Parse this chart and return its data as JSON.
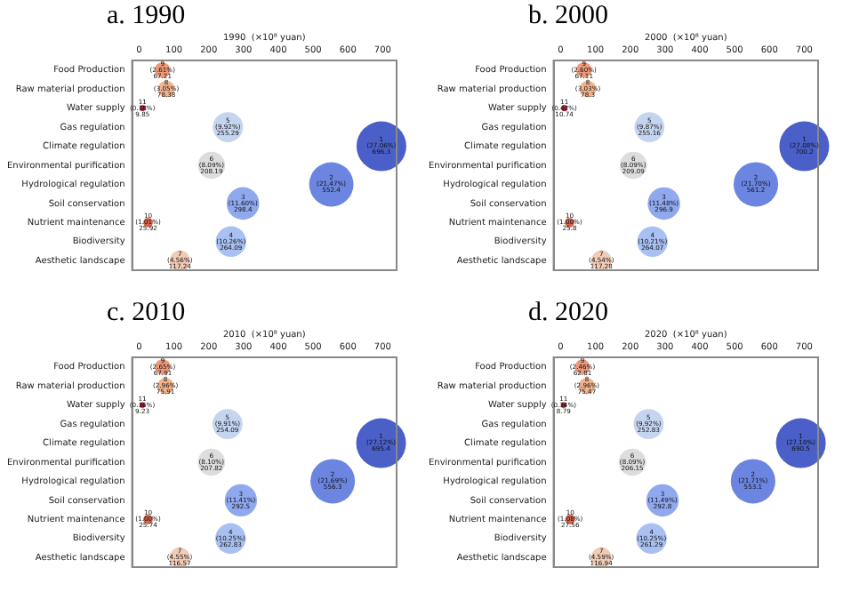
{
  "chart_data": [
    {
      "type": "bubble",
      "title": "a. 1990",
      "xlabel": "1990  (×10⁸ yuan)",
      "orientation": "horizontal",
      "categories": [
        "Food Production",
        "Raw material production",
        "Water supply",
        "Gas regulation",
        "Climate regulation",
        "Environmental purification",
        "Hydrological regulation",
        "Soil conservation",
        "Nutrient maintenance",
        "Biodiversity",
        "Aesthetic landscape"
      ],
      "values": [
        67.21,
        78.38,
        9.85,
        255.29,
        696.3,
        208.19,
        552.4,
        298.4,
        25.92,
        264.09,
        117.24
      ],
      "sizes": [
        0.097,
        0.113,
        0.014,
        0.367,
        1,
        0.299,
        0.793,
        0.429,
        0.037,
        0.379,
        0.168
      ],
      "value_labels": [
        "9\n(2.61%)\n67.21",
        "8\n(3.05%)\n78.38",
        "11\n(0.38%)\n9.85",
        "5\n(9.92%)\n255.29",
        "1\n(27.06%)\n696.3",
        "6\n(8.09%)\n208.19",
        "2\n(21.47%)\n552.4",
        "3\n(11.60%)\n298.4",
        "10\n(1.01%)\n25.92",
        "4\n(10.26%)\n264.09",
        "7\n(4.56%)\n117.24"
      ],
      "colors": [
        "#ee9a7a",
        "#f2b48f",
        "#a02030",
        "#c5d5f0",
        "#4a5fc8",
        "#dddddd",
        "#6b85e0",
        "#8fa8ee",
        "#d9634f",
        "#a9c0f2",
        "#f0cbb5"
      ],
      "xlim": [
        -20,
        740
      ],
      "xticks": [
        0,
        100,
        200,
        300,
        400,
        500,
        600,
        700
      ],
      "grid": false
    },
    {
      "type": "bubble",
      "title": "b. 2000",
      "xlabel": "2000  (×10⁸ yuan)",
      "orientation": "horizontal",
      "categories": [
        "Food Production",
        "Raw material production",
        "Water supply",
        "Gas regulation",
        "Climate regulation",
        "Environmental purification",
        "Hydrological regulation",
        "Soil conservation",
        "Nutrient maintenance",
        "Biodiversity",
        "Aesthetic landscape"
      ],
      "values": [
        67.11,
        78.3,
        10.74,
        255.16,
        700.2,
        209.09,
        561.2,
        296.9,
        25.8,
        264.07,
        117.28
      ],
      "sizes": [
        0.096,
        0.112,
        0.015,
        0.364,
        1,
        0.299,
        0.801,
        0.424,
        0.037,
        0.377,
        0.167
      ],
      "value_labels": [
        "9\n(2.60%)\n67.11",
        "8\n(3.03%)\n78.3",
        "11\n(0.42%)\n10.74",
        "5\n(9.87%)\n255.16",
        "1\n(27.08%)\n700.2",
        "6\n(8.09%)\n209.09",
        "2\n(21.70%)\n561.2",
        "3\n(11.48%)\n296.9",
        "10\n(1.00%)\n25.8",
        "4\n(10.21%)\n264.07",
        "7\n(4.54%)\n117.28"
      ],
      "colors": [
        "#ee9a7a",
        "#f2b48f",
        "#a02030",
        "#c5d5f0",
        "#4a5fc8",
        "#dddddd",
        "#6b85e0",
        "#8fa8ee",
        "#d9634f",
        "#a9c0f2",
        "#f0cbb5"
      ],
      "xlim": [
        -20,
        740
      ],
      "xticks": [
        0,
        100,
        200,
        300,
        400,
        500,
        600,
        700
      ],
      "grid": false
    },
    {
      "type": "bubble",
      "title": "c. 2010",
      "xlabel": "2010  (×10⁸ yuan)",
      "orientation": "horizontal",
      "categories": [
        "Food Production",
        "Raw material production",
        "Water supply",
        "Gas regulation",
        "Climate regulation",
        "Environmental purification",
        "Hydrological regulation",
        "Soil conservation",
        "Nutrient maintenance",
        "Biodiversity",
        "Aesthetic landscape"
      ],
      "values": [
        67.91,
        75.91,
        9.23,
        254.09,
        695.4,
        207.82,
        556.3,
        292.5,
        25.74,
        262.83,
        116.57
      ],
      "sizes": [
        0.098,
        0.109,
        0.013,
        0.365,
        1,
        0.299,
        0.8,
        0.421,
        0.037,
        0.378,
        0.168
      ],
      "value_labels": [
        "9\n(2.65%)\n67.91",
        "8\n(2.96%)\n75.91",
        "11\n(0.36%)\n9.23",
        "5\n(9.91%)\n254.09",
        "1\n(27.12%)\n695.4",
        "6\n(8.10%)\n207.82",
        "2\n(21.69%)\n556.3",
        "3\n(11.41%)\n292.5",
        "10\n(1.00%)\n25.74",
        "4\n(10.25%)\n262.83",
        "7\n(4.55%)\n116.57"
      ],
      "colors": [
        "#ee9a7a",
        "#f2b48f",
        "#a02030",
        "#c5d5f0",
        "#4a5fc8",
        "#dddddd",
        "#6b85e0",
        "#8fa8ee",
        "#d9634f",
        "#a9c0f2",
        "#f0cbb5"
      ],
      "xlim": [
        -20,
        740
      ],
      "xticks": [
        0,
        100,
        200,
        300,
        400,
        500,
        600,
        700
      ],
      "grid": false
    },
    {
      "type": "bubble",
      "title": "d. 2020",
      "xlabel": "2020  (×10⁸ yuan)",
      "orientation": "horizontal",
      "categories": [
        "Food Production",
        "Raw material production",
        "Water supply",
        "Gas regulation",
        "Climate regulation",
        "Environmental purification",
        "Hydrological regulation",
        "Soil conservation",
        "Nutrient maintenance",
        "Biodiversity",
        "Aesthetic landscape"
      ],
      "values": [
        62.81,
        75.47,
        8.79,
        252.83,
        690.5,
        206.15,
        553.1,
        292.8,
        27.56,
        261.29,
        116.94
      ],
      "sizes": [
        0.091,
        0.109,
        0.013,
        0.366,
        1,
        0.299,
        0.801,
        0.424,
        0.04,
        0.378,
        0.169
      ],
      "value_labels": [
        "9\n(2.46%)\n62.81",
        "8\n(2.96%)\n75.47",
        "11\n(0.34%)\n8.79",
        "5\n(9.92%)\n252.83",
        "1\n(27.10%)\n690.5",
        "6\n(8.09%)\n206.15",
        "2\n(21.71%)\n553.1",
        "3\n(11.49%)\n292.8",
        "10\n(1.08%)\n27.56",
        "4\n(10.25%)\n261.29",
        "7\n(4.59%)\n116.94"
      ],
      "colors": [
        "#ee9a7a",
        "#f2b48f",
        "#a02030",
        "#c5d5f0",
        "#4a5fc8",
        "#dddddd",
        "#6b85e0",
        "#8fa8ee",
        "#d9634f",
        "#a9c0f2",
        "#f0cbb5"
      ],
      "xlim": [
        -20,
        740
      ],
      "xticks": [
        0,
        100,
        200,
        300,
        400,
        500,
        600,
        700
      ],
      "grid": false
    }
  ]
}
